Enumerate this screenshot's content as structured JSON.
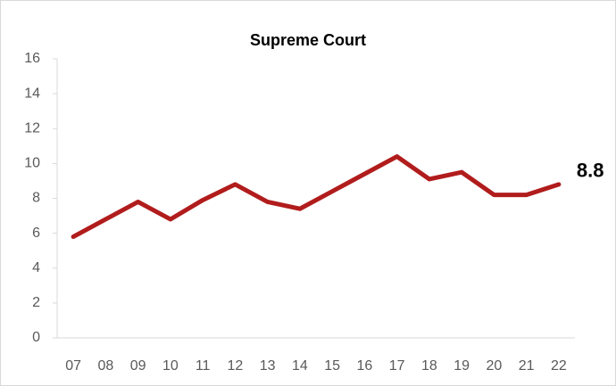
{
  "chart_data": {
    "type": "line",
    "title": "Supreme Court",
    "categories": [
      "07",
      "08",
      "09",
      "10",
      "11",
      "12",
      "13",
      "14",
      "15",
      "16",
      "17",
      "18",
      "19",
      "20",
      "21",
      "22"
    ],
    "values": [
      5.8,
      6.8,
      7.8,
      6.8,
      7.9,
      8.8,
      7.8,
      7.4,
      8.4,
      9.4,
      10.4,
      9.1,
      9.5,
      8.2,
      8.2,
      8.8
    ],
    "color": "#b11c1c",
    "ylim": [
      0,
      16
    ],
    "yticks": [
      0,
      2,
      4,
      6,
      8,
      10,
      12,
      14,
      16
    ],
    "grid": false
  }
}
